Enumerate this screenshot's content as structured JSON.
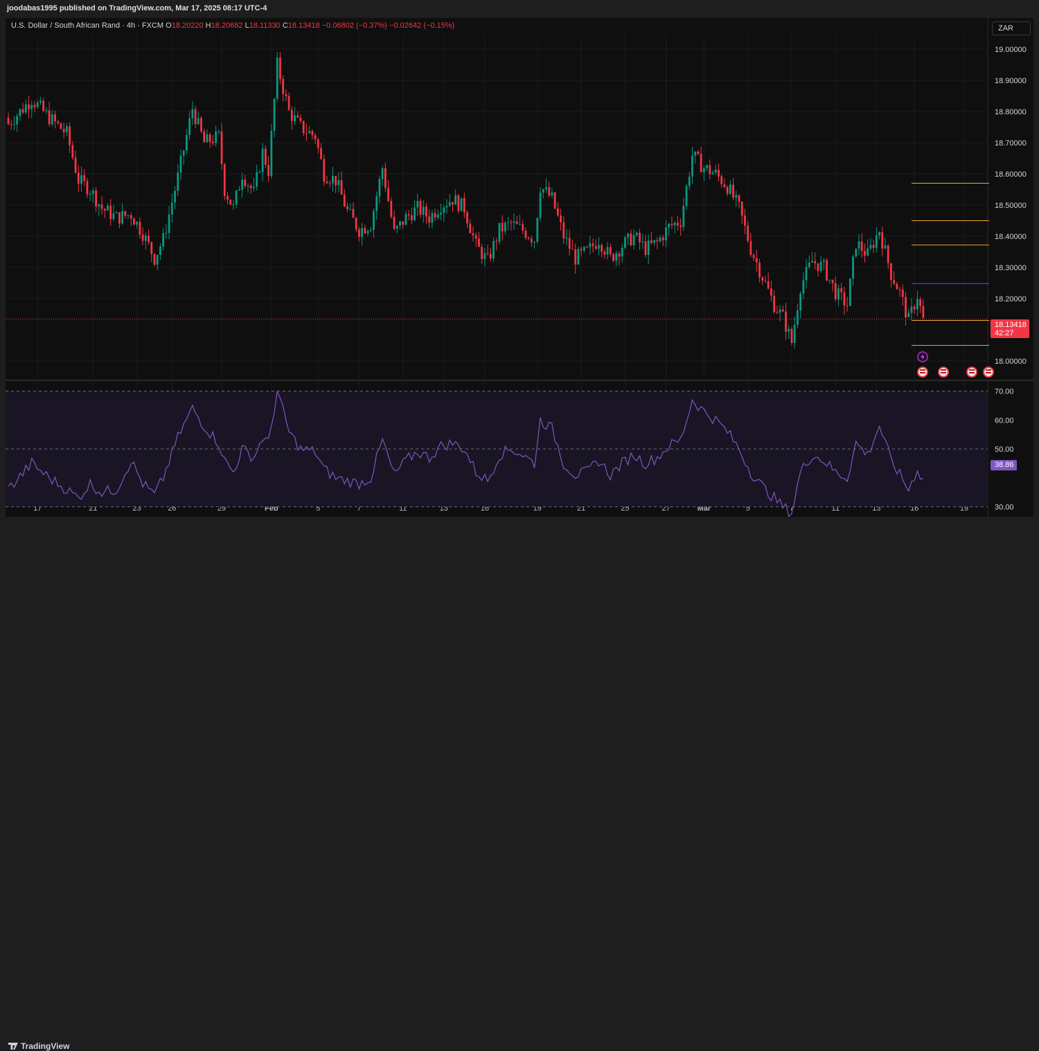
{
  "header": {
    "publisher": "joodabas1995 published on TradingView.com, Mar 17, 2025 08:17 UTC-4"
  },
  "legend": {
    "symbol": "U.S. Dollar / South African Rand · 4h · FXCM",
    "open_label": "O",
    "open": "18.20220",
    "high_label": "H",
    "high": "18.20682",
    "low_label": "L",
    "low": "18.11330",
    "close_label": "C",
    "close": "18.13418",
    "change": "−0.06802 (−0.37%)",
    "change2": "−0.02642 (−0.15%)"
  },
  "currency_button": "ZAR",
  "price_tag": {
    "price": "18.13418",
    "countdown": "42:27"
  },
  "rsi_tag": "38.86",
  "footer": {
    "brand": "TradingView"
  },
  "colors": {
    "up": "#089981",
    "down": "#f23645",
    "rsi": "#7e57c2",
    "level_orange": "#f5a623",
    "level_blue": "#2962ff"
  },
  "chart_data": [
    {
      "type": "candlestick",
      "timeframe": "4h",
      "symbol": "USDZAR",
      "x_tick_labels": [
        "17",
        "21",
        "23",
        "26",
        "29",
        "Feb",
        "5",
        "7",
        "11",
        "13",
        "16",
        "19",
        "21",
        "25",
        "27",
        "Mar",
        "5",
        "7",
        "11",
        "13",
        "16",
        "19"
      ],
      "y_tick_labels": [
        "19.00000",
        "18.90000",
        "18.80000",
        "18.70000",
        "18.60000",
        "18.50000",
        "18.40000",
        "18.30000",
        "18.20000",
        "18.00000"
      ],
      "ylim": [
        17.94,
        19.1
      ],
      "current_price": 18.13418,
      "horizontal_levels": [
        {
          "value": 18.57,
          "color": "orange"
        },
        {
          "value": 18.45,
          "color": "orange"
        },
        {
          "value": 18.372,
          "color": "orange"
        },
        {
          "value": 18.248,
          "color": "blue"
        },
        {
          "value": 18.13,
          "color": "orange"
        },
        {
          "value": 18.05,
          "color": "orange"
        }
      ],
      "close_path": [
        [
          0,
          18.76
        ],
        [
          8,
          18.84
        ],
        [
          14,
          18.78
        ],
        [
          20,
          18.73
        ],
        [
          24,
          18.58
        ],
        [
          28,
          18.55
        ],
        [
          32,
          18.49
        ],
        [
          37,
          18.46
        ],
        [
          42,
          18.47
        ],
        [
          46,
          18.41
        ],
        [
          50,
          18.33
        ],
        [
          53,
          18.39
        ],
        [
          58,
          18.59
        ],
        [
          63,
          18.81
        ],
        [
          67,
          18.7
        ],
        [
          72,
          18.72
        ],
        [
          74,
          18.55
        ],
        [
          77,
          18.49
        ],
        [
          80,
          18.6
        ],
        [
          84,
          18.54
        ],
        [
          87,
          18.67
        ],
        [
          89,
          18.61
        ],
        [
          92,
          18.95
        ],
        [
          96,
          18.8
        ],
        [
          100,
          18.75
        ],
        [
          105,
          18.72
        ],
        [
          108,
          18.6
        ],
        [
          112,
          18.58
        ],
        [
          116,
          18.48
        ],
        [
          120,
          18.42
        ],
        [
          124,
          18.44
        ],
        [
          128,
          18.62
        ],
        [
          132,
          18.41
        ],
        [
          136,
          18.46
        ],
        [
          140,
          18.49
        ],
        [
          144,
          18.46
        ],
        [
          148,
          18.5
        ],
        [
          152,
          18.52
        ],
        [
          156,
          18.49
        ],
        [
          160,
          18.37
        ],
        [
          164,
          18.32
        ],
        [
          168,
          18.42
        ],
        [
          172,
          18.44
        ],
        [
          176,
          18.42
        ],
        [
          180,
          18.39
        ],
        [
          182,
          18.56
        ],
        [
          186,
          18.52
        ],
        [
          190,
          18.4
        ],
        [
          194,
          18.33
        ],
        [
          198,
          18.35
        ],
        [
          202,
          18.39
        ],
        [
          206,
          18.33
        ],
        [
          210,
          18.37
        ],
        [
          214,
          18.4
        ],
        [
          218,
          18.36
        ],
        [
          222,
          18.38
        ],
        [
          226,
          18.43
        ],
        [
          230,
          18.45
        ],
        [
          234,
          18.66
        ],
        [
          238,
          18.62
        ],
        [
          242,
          18.6
        ],
        [
          246,
          18.56
        ],
        [
          250,
          18.49
        ],
        [
          254,
          18.36
        ],
        [
          258,
          18.27
        ],
        [
          262,
          18.18
        ],
        [
          265,
          18.14
        ],
        [
          268,
          18.06
        ],
        [
          271,
          18.24
        ],
        [
          275,
          18.32
        ],
        [
          279,
          18.3
        ],
        [
          283,
          18.22
        ],
        [
          287,
          18.18
        ],
        [
          290,
          18.38
        ],
        [
          294,
          18.34
        ],
        [
          298,
          18.42
        ],
        [
          302,
          18.28
        ],
        [
          305,
          18.22
        ],
        [
          308,
          18.13
        ],
        [
          311,
          18.21
        ],
        [
          313,
          18.13
        ]
      ]
    },
    {
      "type": "line",
      "name": "RSI",
      "y_tick_labels": [
        "70.00",
        "60.00",
        "50.00",
        "30.00"
      ],
      "ylim": [
        27,
        73
      ],
      "bands": [
        30,
        50,
        70
      ],
      "current_value": 38.86,
      "path": [
        [
          0,
          36
        ],
        [
          8,
          45
        ],
        [
          14,
          40
        ],
        [
          20,
          36
        ],
        [
          24,
          33
        ],
        [
          28,
          38
        ],
        [
          32,
          35
        ],
        [
          37,
          36
        ],
        [
          42,
          46
        ],
        [
          46,
          38
        ],
        [
          50,
          34
        ],
        [
          53,
          40
        ],
        [
          58,
          54
        ],
        [
          63,
          64
        ],
        [
          67,
          58
        ],
        [
          72,
          52
        ],
        [
          74,
          46
        ],
        [
          77,
          42
        ],
        [
          80,
          50
        ],
        [
          84,
          47
        ],
        [
          87,
          54
        ],
        [
          89,
          52
        ],
        [
          92,
          70
        ],
        [
          96,
          56
        ],
        [
          100,
          50
        ],
        [
          105,
          49
        ],
        [
          108,
          43
        ],
        [
          112,
          40
        ],
        [
          116,
          39
        ],
        [
          120,
          38
        ],
        [
          124,
          40
        ],
        [
          128,
          53
        ],
        [
          132,
          41
        ],
        [
          136,
          46
        ],
        [
          140,
          49
        ],
        [
          144,
          47
        ],
        [
          148,
          51
        ],
        [
          152,
          52
        ],
        [
          156,
          50
        ],
        [
          160,
          42
        ],
        [
          164,
          39
        ],
        [
          168,
          48
        ],
        [
          172,
          50
        ],
        [
          176,
          48
        ],
        [
          180,
          45
        ],
        [
          182,
          60
        ],
        [
          186,
          57
        ],
        [
          190,
          45
        ],
        [
          194,
          41
        ],
        [
          198,
          42
        ],
        [
          202,
          46
        ],
        [
          206,
          41
        ],
        [
          210,
          45
        ],
        [
          214,
          48
        ],
        [
          218,
          45
        ],
        [
          222,
          47
        ],
        [
          226,
          51
        ],
        [
          230,
          53
        ],
        [
          234,
          67
        ],
        [
          238,
          63
        ],
        [
          242,
          60
        ],
        [
          246,
          56
        ],
        [
          250,
          50
        ],
        [
          254,
          42
        ],
        [
          258,
          37
        ],
        [
          262,
          33
        ],
        [
          265,
          30
        ],
        [
          268,
          28
        ],
        [
          271,
          42
        ],
        [
          275,
          48
        ],
        [
          279,
          46
        ],
        [
          283,
          42
        ],
        [
          287,
          40
        ],
        [
          290,
          52
        ],
        [
          294,
          48
        ],
        [
          298,
          58
        ],
        [
          302,
          46
        ],
        [
          305,
          41
        ],
        [
          308,
          36
        ],
        [
          311,
          43
        ],
        [
          313,
          39
        ]
      ]
    }
  ]
}
